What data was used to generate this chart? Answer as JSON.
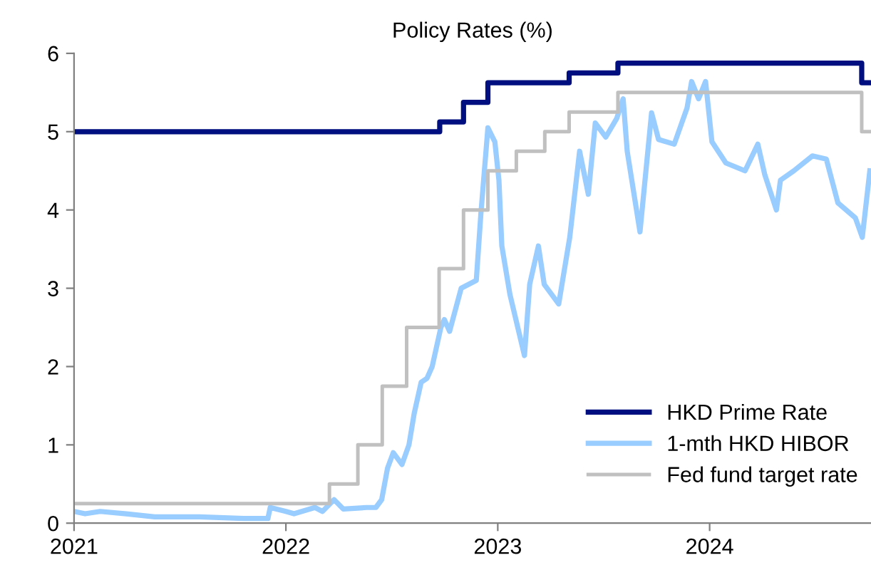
{
  "chart_data": {
    "type": "line",
    "title": "Policy Rates (%)",
    "xlim": [
      "2021-01-01",
      "2024-10-05"
    ],
    "xticks": [
      {
        "value": "2021-01-01",
        "label": "2021"
      },
      {
        "value": "2022-01-01",
        "label": "2022"
      },
      {
        "value": "2023-01-01",
        "label": "2023"
      },
      {
        "value": "2024-01-01",
        "label": "2024"
      }
    ],
    "ylim": [
      0,
      6
    ],
    "yticks": [
      0,
      1,
      2,
      3,
      4,
      5,
      6
    ],
    "grid": false,
    "legend": "bottom right",
    "marker": "none",
    "line_style": "solid",
    "series": [
      {
        "name": "HKD Prime Rate",
        "color": "#000f7f",
        "type": "step",
        "x": [
          "2021-01-01",
          "2022-09-23",
          "2022-11-03",
          "2022-12-15",
          "2023-05-04",
          "2023-07-27",
          "2024-09-19",
          "2024-10-05"
        ],
        "values": [
          5,
          5.125,
          5.375,
          5.625,
          5.75,
          5.875,
          5.625,
          5.625
        ]
      },
      {
        "name": "1-mth HKD HIBOR",
        "color": "#99ccff",
        "x": [
          "2021-01-01",
          "2021-01-20",
          "2021-02-15",
          "2021-04-01",
          "2021-05-20",
          "2021-08-05",
          "2021-10-20",
          "2021-12-01",
          "2021-12-05",
          "2022-01-01",
          "2022-01-15",
          "2022-02-20",
          "2022-03-05",
          "2022-03-25",
          "2022-04-10",
          "2022-05-20",
          "2022-06-05",
          "2022-06-15",
          "2022-06-25",
          "2022-07-05",
          "2022-07-20",
          "2022-08-01",
          "2022-08-10",
          "2022-08-22",
          "2022-09-01",
          "2022-09-10",
          "2022-09-25",
          "2022-10-01",
          "2022-10-10",
          "2022-10-30",
          "2022-11-25",
          "2022-12-03",
          "2022-12-15",
          "2022-12-27",
          "2023-01-03",
          "2023-01-08",
          "2023-01-22",
          "2023-02-16",
          "2023-02-25",
          "2023-03-12",
          "2023-03-22",
          "2023-04-16",
          "2023-05-05",
          "2023-05-22",
          "2023-06-06",
          "2023-06-18",
          "2023-07-06",
          "2023-07-25",
          "2023-08-05",
          "2023-08-12",
          "2023-09-03",
          "2023-09-23",
          "2023-10-05",
          "2023-11-01",
          "2023-11-23",
          "2023-12-01",
          "2023-12-13",
          "2023-12-25",
          "2024-01-05",
          "2024-01-29",
          "2024-03-02",
          "2024-03-24",
          "2024-04-05",
          "2024-04-25",
          "2024-05-02",
          "2024-05-25",
          "2024-06-26",
          "2024-07-20",
          "2024-08-09",
          "2024-09-08",
          "2024-09-20",
          "2024-10-03"
        ],
        "values": [
          0.15,
          0.12,
          0.15,
          0.12,
          0.08,
          0.08,
          0.06,
          0.06,
          0.2,
          0.15,
          0.12,
          0.2,
          0.15,
          0.3,
          0.18,
          0.2,
          0.2,
          0.3,
          0.7,
          0.9,
          0.75,
          1.0,
          1.4,
          1.8,
          1.85,
          2.0,
          2.5,
          2.6,
          2.45,
          3.0,
          3.1,
          3.96,
          5.05,
          4.87,
          4.38,
          3.54,
          2.92,
          2.14,
          3.05,
          3.54,
          3.05,
          2.8,
          3.65,
          4.75,
          4.2,
          5.11,
          4.93,
          5.17,
          5.42,
          4.75,
          3.72,
          5.24,
          4.9,
          4.84,
          5.3,
          5.64,
          5.42,
          5.64,
          4.87,
          4.6,
          4.5,
          4.84,
          4.45,
          4.0,
          4.38,
          4.5,
          4.69,
          4.65,
          4.09,
          3.9,
          3.65,
          4.5
        ]
      },
      {
        "name": "Fed fund target rate",
        "color": "#c0c0c0",
        "type": "step",
        "x": [
          "2021-01-01",
          "2022-03-17",
          "2022-05-05",
          "2022-06-16",
          "2022-07-28",
          "2022-09-22",
          "2022-11-03",
          "2022-12-15",
          "2023-02-02",
          "2023-03-23",
          "2023-05-04",
          "2023-07-27",
          "2024-09-19",
          "2024-10-05"
        ],
        "values": [
          0.25,
          0.5,
          1.0,
          1.75,
          2.5,
          3.25,
          4.0,
          4.5,
          4.75,
          5.0,
          5.25,
          5.5,
          5.0,
          5.0
        ]
      }
    ]
  }
}
